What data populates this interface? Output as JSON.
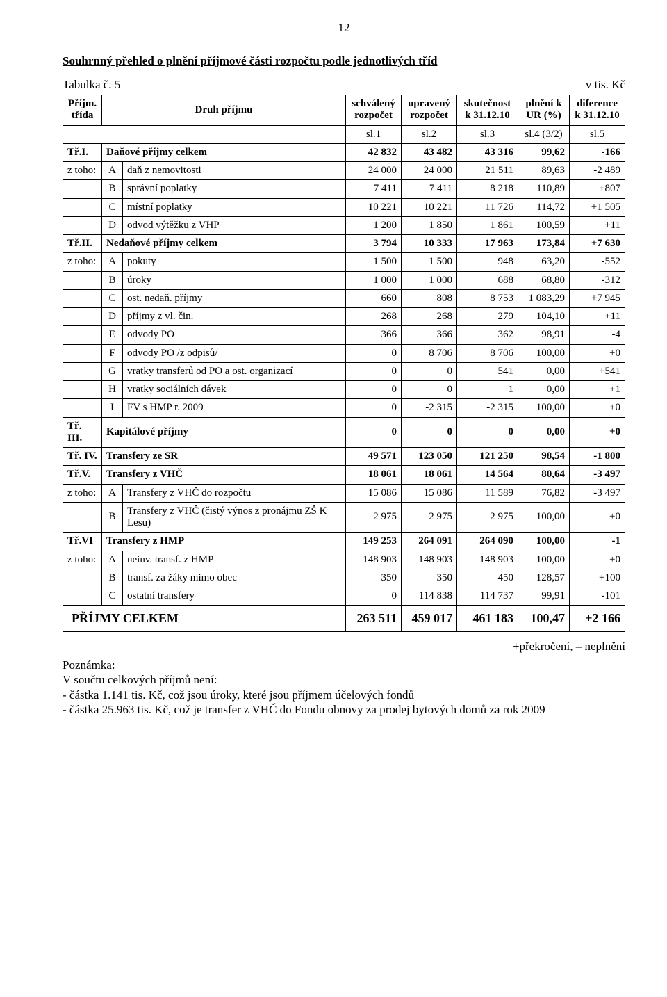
{
  "page_number": "12",
  "title": "Souhrnný přehled o plnění příjmové části rozpočtu podle jednotlivých tříd",
  "table_label": "Tabulka č. 5",
  "units_label": "v tis. Kč",
  "headers": {
    "col1": "Příjm. třída",
    "col2": "Druh příjmu",
    "col3": "schválený rozpočet",
    "col4": "upravený rozpočet",
    "col5": "skutečnost k 31.12.10",
    "col6": "plnění k UR (%)",
    "col7": "diference k 31.12.10"
  },
  "slrow": {
    "c3": "sl.1",
    "c4": "sl.2",
    "c5": "sl.3",
    "c6": "sl.4 (3/2)",
    "c7": "sl.5"
  },
  "rows": [
    {
      "bold": true,
      "c1": "Tř.I.",
      "c2": "",
      "desc": "Daňové příjmy celkem",
      "v": [
        "42 832",
        "43 482",
        "43 316",
        "99,62",
        "-166"
      ]
    },
    {
      "c1": "z toho:",
      "c2": "A",
      "desc": "daň z nemovitosti",
      "v": [
        "24 000",
        "24 000",
        "21 511",
        "89,63",
        "-2 489"
      ]
    },
    {
      "c1": "",
      "c2": "B",
      "desc": "správní poplatky",
      "v": [
        "7 411",
        "7 411",
        "8 218",
        "110,89",
        "+807"
      ]
    },
    {
      "c1": "",
      "c2": "C",
      "desc": "místní poplatky",
      "v": [
        "10 221",
        "10 221",
        "11 726",
        "114,72",
        "+1 505"
      ]
    },
    {
      "c1": "",
      "c2": "D",
      "desc": "odvod výtěžku z VHP",
      "v": [
        "1 200",
        "1 850",
        "1 861",
        "100,59",
        "+11"
      ]
    },
    {
      "bold": true,
      "c1": "Tř.II.",
      "c2": "",
      "desc": "Nedaňové příjmy celkem",
      "v": [
        "3 794",
        "10 333",
        "17 963",
        "173,84",
        "+7 630"
      ]
    },
    {
      "c1": "z toho:",
      "c2": "A",
      "desc": "pokuty",
      "v": [
        "1 500",
        "1 500",
        "948",
        "63,20",
        "-552"
      ]
    },
    {
      "c1": "",
      "c2": "B",
      "desc": "úroky",
      "v": [
        "1 000",
        "1 000",
        "688",
        "68,80",
        "-312"
      ]
    },
    {
      "c1": "",
      "c2": "C",
      "desc": "ost. nedaň. příjmy",
      "v": [
        "660",
        "808",
        "8 753",
        "1 083,29",
        "+7 945"
      ]
    },
    {
      "c1": "",
      "c2": "D",
      "desc": "příjmy z vl. čin.",
      "v": [
        "268",
        "268",
        "279",
        "104,10",
        "+11"
      ]
    },
    {
      "c1": "",
      "c2": "E",
      "desc": "odvody PO",
      "v": [
        "366",
        "366",
        "362",
        "98,91",
        "-4"
      ]
    },
    {
      "c1": "",
      "c2": "F",
      "desc": "odvody PO /z odpisů/",
      "v": [
        "0",
        "8 706",
        "8 706",
        "100,00",
        "+0"
      ]
    },
    {
      "c1": "",
      "c2": "G",
      "desc": "vratky transferů od PO a ost. organizací",
      "v": [
        "0",
        "0",
        "541",
        "0,00",
        "+541"
      ]
    },
    {
      "c1": "",
      "c2": "H",
      "desc": "vratky sociálních dávek",
      "v": [
        "0",
        "0",
        "1",
        "0,00",
        "+1"
      ]
    },
    {
      "c1": "",
      "c2": "I",
      "desc": "FV s HMP r. 2009",
      "v": [
        "0",
        "-2 315",
        "-2 315",
        "100,00",
        "+0"
      ]
    },
    {
      "bold": true,
      "c1": "Tř. III.",
      "c2": "",
      "desc": "Kapitálové příjmy",
      "v": [
        "0",
        "0",
        "0",
        "0,00",
        "+0"
      ]
    },
    {
      "bold": true,
      "c1": "Tř. IV.",
      "c2": "",
      "desc": "Transfery ze SR",
      "v": [
        "49 571",
        "123 050",
        "121 250",
        "98,54",
        "-1 800"
      ]
    },
    {
      "bold": true,
      "c1": "Tř.V.",
      "c2": "",
      "desc": "Transfery z VHČ",
      "v": [
        "18 061",
        "18 061",
        "14 564",
        "80,64",
        "-3 497"
      ]
    },
    {
      "c1": "z toho:",
      "c2": "A",
      "desc": "Transfery z VHČ do rozpočtu",
      "v": [
        "15 086",
        "15 086",
        "11 589",
        "76,82",
        "-3 497"
      ]
    },
    {
      "c1": "",
      "c2": "B",
      "desc": "Transfery z VHČ (čistý výnos z pronájmu ZŠ K Lesu)",
      "v": [
        "2 975",
        "2 975",
        "2 975",
        "100,00",
        "+0"
      ]
    },
    {
      "bold": true,
      "c1": "Tř.VI",
      "c2": "",
      "desc": "Transfery z HMP",
      "v": [
        "149 253",
        "264 091",
        "264 090",
        "100,00",
        "-1"
      ]
    },
    {
      "c1": "z toho:",
      "c2": "A",
      "desc": "neinv. transf. z HMP",
      "v": [
        "148 903",
        "148 903",
        "148 903",
        "100,00",
        "+0"
      ]
    },
    {
      "c1": "",
      "c2": "B",
      "desc": "transf. za žáky mimo obec",
      "v": [
        "350",
        "350",
        "450",
        "128,57",
        "+100"
      ]
    },
    {
      "c1": "",
      "c2": "C",
      "desc": "ostatní transfery",
      "v": [
        "0",
        "114 838",
        "114 737",
        "99,91",
        "-101"
      ]
    }
  ],
  "sum": {
    "label": "PŘÍJMY CELKEM",
    "v": [
      "263 511",
      "459 017",
      "461 183",
      "100,47",
      "+2 166"
    ]
  },
  "footnote": {
    "right": "+překročení, – neplnění",
    "l1": "Poznámka:",
    "l2": "V součtu celkových příjmů není:",
    "l3": "- částka 1.141 tis. Kč, což jsou úroky, které jsou příjmem účelových fondů",
    "l4": "- částka 25.963 tis. Kč, což je transfer z VHČ do Fondu obnovy za prodej bytových domů za rok 2009"
  }
}
